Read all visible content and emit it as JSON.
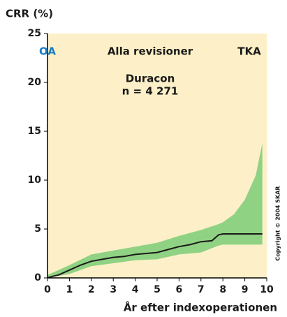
{
  "chart_data": {
    "type": "line",
    "ylabel": "CRR (%)",
    "xlabel": "År efter indexoperationen",
    "annotations": [
      "OA",
      "Alla revisioner",
      "TKA",
      "Duracon",
      "n = 4 271"
    ],
    "annotation_colors": [
      "#1a7cc1",
      "#1a1a1a",
      "#1a1a1a",
      "#1a1a1a",
      "#1a1a1a"
    ],
    "copyright": "Copyright © 2004 SKAR",
    "xlim": [
      0,
      10
    ],
    "xticks": [
      0,
      1,
      2,
      3,
      4,
      5,
      6,
      7,
      8,
      9,
      10
    ],
    "ylim": [
      0,
      25
    ],
    "yticks": [
      0,
      5,
      10,
      15,
      20,
      25
    ],
    "background": "#fdf0c8",
    "line": {
      "color": "#1a1a1a",
      "x": [
        0,
        0.3,
        0.5,
        1,
        1.5,
        2,
        2.5,
        3,
        3.5,
        4,
        4.5,
        5,
        5.5,
        6,
        6.5,
        7,
        7.5,
        7.8,
        8,
        9,
        9.8
      ],
      "values": [
        0,
        0.2,
        0.3,
        0.8,
        1.3,
        1.7,
        1.9,
        2.1,
        2.2,
        2.4,
        2.5,
        2.6,
        2.9,
        3.2,
        3.4,
        3.7,
        3.8,
        4.4,
        4.5,
        4.5,
        4.5
      ]
    },
    "band": {
      "color": "#90d283",
      "x": [
        0,
        1,
        2,
        3,
        4,
        5,
        6,
        7,
        7.8,
        8,
        8.5,
        9,
        9.5,
        9.8
      ],
      "upper": [
        0.3,
        1.3,
        2.4,
        2.8,
        3.2,
        3.6,
        4.3,
        4.9,
        5.5,
        5.7,
        6.5,
        8.0,
        10.5,
        13.8
      ],
      "lower": [
        0,
        0.4,
        1.2,
        1.5,
        1.8,
        1.9,
        2.4,
        2.6,
        3.3,
        3.4,
        3.4,
        3.4,
        3.4,
        3.4
      ]
    }
  }
}
